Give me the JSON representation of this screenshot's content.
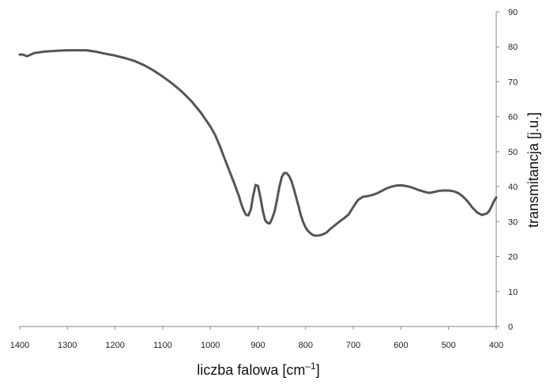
{
  "chart_data": {
    "type": "line",
    "title": "",
    "xlabel_main": "liczba falowa [cm",
    "xlabel_sup": "–1",
    "xlabel_end": "]",
    "ylabel": "transmitancja [j.u.]",
    "xlim": [
      1400,
      400
    ],
    "ylim": [
      0,
      90
    ],
    "x_reversed": true,
    "y_axis_side": "right",
    "grid": false,
    "legend": "none",
    "x_ticks": [
      1400,
      1300,
      1200,
      1100,
      1000,
      900,
      800,
      700,
      600,
      500,
      400
    ],
    "y_ticks": [
      0,
      10,
      20,
      30,
      40,
      50,
      60,
      70,
      80,
      90
    ],
    "line_color": "#555555",
    "series": [
      {
        "x": [
          1400,
          1395,
          1390,
          1385,
          1380,
          1370,
          1350,
          1320,
          1300,
          1280,
          1260,
          1240,
          1220,
          1200,
          1180,
          1160,
          1140,
          1120,
          1100,
          1080,
          1060,
          1040,
          1020,
          1000,
          990,
          980,
          970,
          960,
          950,
          940,
          935,
          930,
          925,
          920,
          915,
          910,
          905,
          900,
          895,
          890,
          885,
          880,
          875,
          870,
          865,
          860,
          855,
          850,
          845,
          840,
          835,
          830,
          825,
          820,
          815,
          810,
          805,
          800,
          795,
          790,
          785,
          780,
          775,
          770,
          765,
          760,
          755,
          750,
          740,
          730,
          720,
          710,
          700,
          690,
          680,
          670,
          660,
          650,
          640,
          630,
          620,
          610,
          600,
          590,
          580,
          570,
          560,
          550,
          540,
          530,
          520,
          510,
          500,
          490,
          480,
          470,
          460,
          450,
          440,
          430,
          420,
          415,
          410,
          405,
          400
        ],
        "values": [
          77.8,
          77.8,
          77.6,
          77.3,
          77.6,
          78.2,
          78.6,
          78.9,
          79.0,
          79.0,
          79.0,
          78.6,
          78.0,
          77.5,
          76.8,
          76.0,
          74.8,
          73.3,
          71.5,
          69.5,
          67.2,
          64.5,
          61.2,
          57.2,
          54.8,
          51.6,
          48.0,
          44.5,
          41.0,
          37.3,
          35.0,
          33.2,
          31.9,
          31.8,
          33.5,
          37.5,
          40.5,
          40.2,
          37.0,
          33.2,
          30.4,
          29.6,
          29.5,
          31.0,
          33.0,
          36.3,
          40.0,
          42.8,
          43.9,
          43.9,
          43.1,
          41.7,
          39.5,
          37.0,
          34.5,
          31.8,
          29.8,
          28.3,
          27.3,
          26.7,
          26.2,
          26.0,
          26.0,
          26.1,
          26.3,
          26.6,
          27.0,
          27.7,
          28.8,
          29.9,
          30.9,
          32.0,
          34.2,
          36.2,
          37.1,
          37.3,
          37.6,
          38.1,
          38.8,
          39.5,
          40.0,
          40.3,
          40.4,
          40.2,
          39.9,
          39.4,
          38.9,
          38.5,
          38.2,
          38.5,
          38.8,
          38.9,
          38.9,
          38.7,
          38.2,
          37.2,
          35.8,
          34.0,
          32.6,
          31.9,
          32.3,
          33.0,
          34.3,
          35.8,
          36.9
        ]
      }
    ]
  }
}
